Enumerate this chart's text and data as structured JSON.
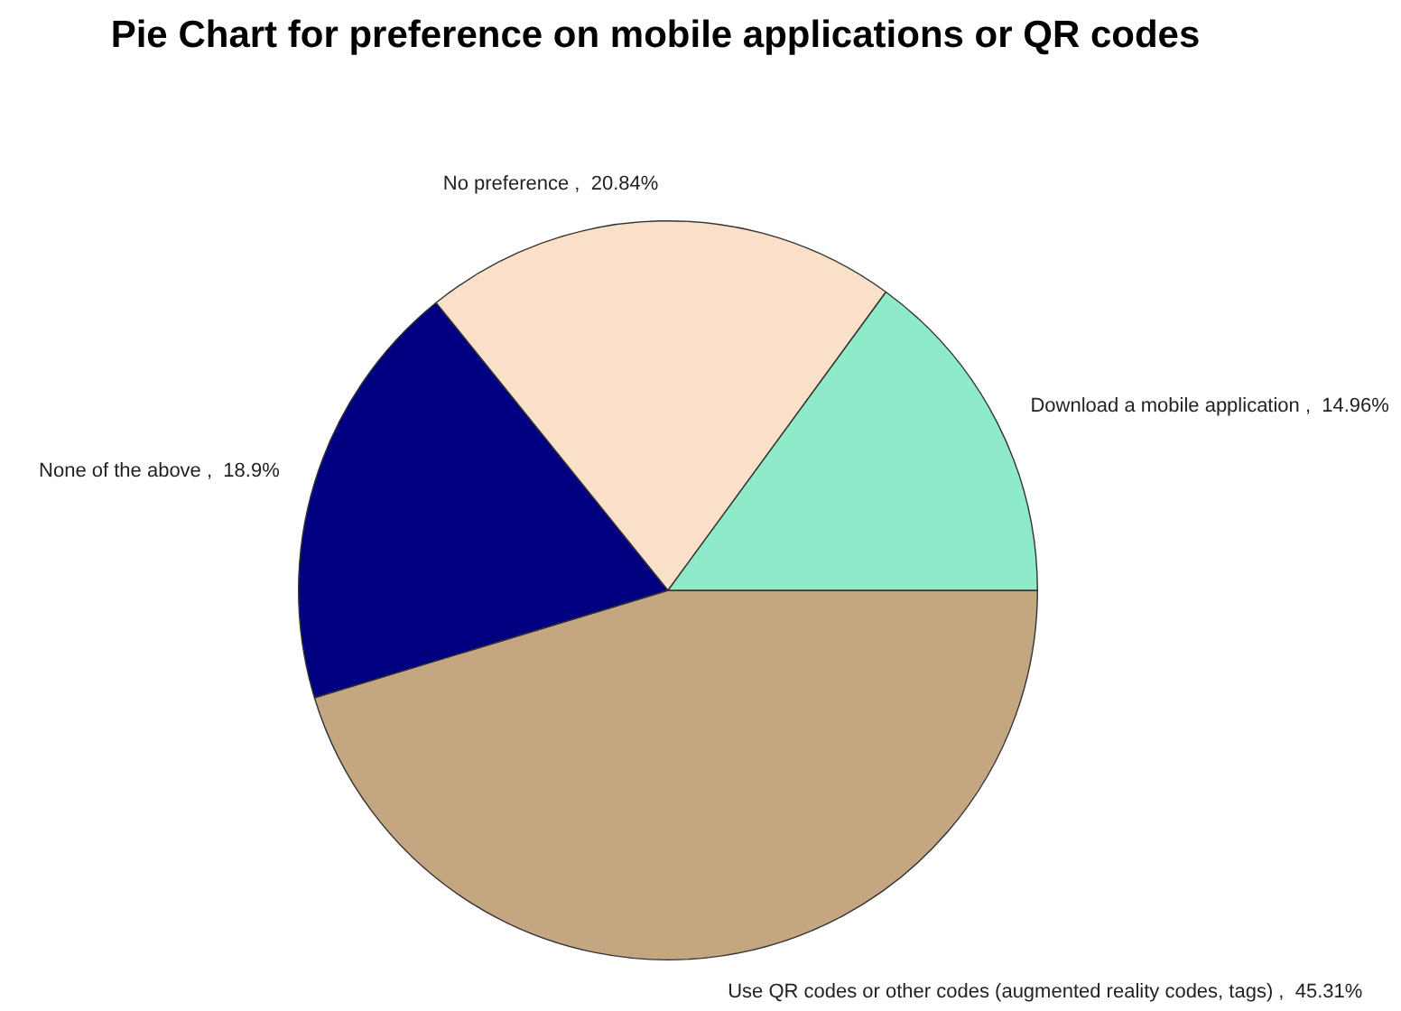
{
  "chart_data": {
    "type": "pie",
    "title": "Pie Chart for preference on mobile applications or QR codes",
    "categories": [
      "Use QR codes or other codes (augmented reality codes, tags)",
      "None of the above",
      "No preference",
      "Download a mobile application"
    ],
    "values": [
      45.31,
      18.9,
      20.84,
      14.96
    ],
    "value_labels": [
      "45.31%",
      "18.9%",
      "20.84%",
      "14.96%"
    ],
    "colors": [
      "#c4a781",
      "#000080",
      "#fae0c8",
      "#8eeac8"
    ],
    "legend": false
  }
}
